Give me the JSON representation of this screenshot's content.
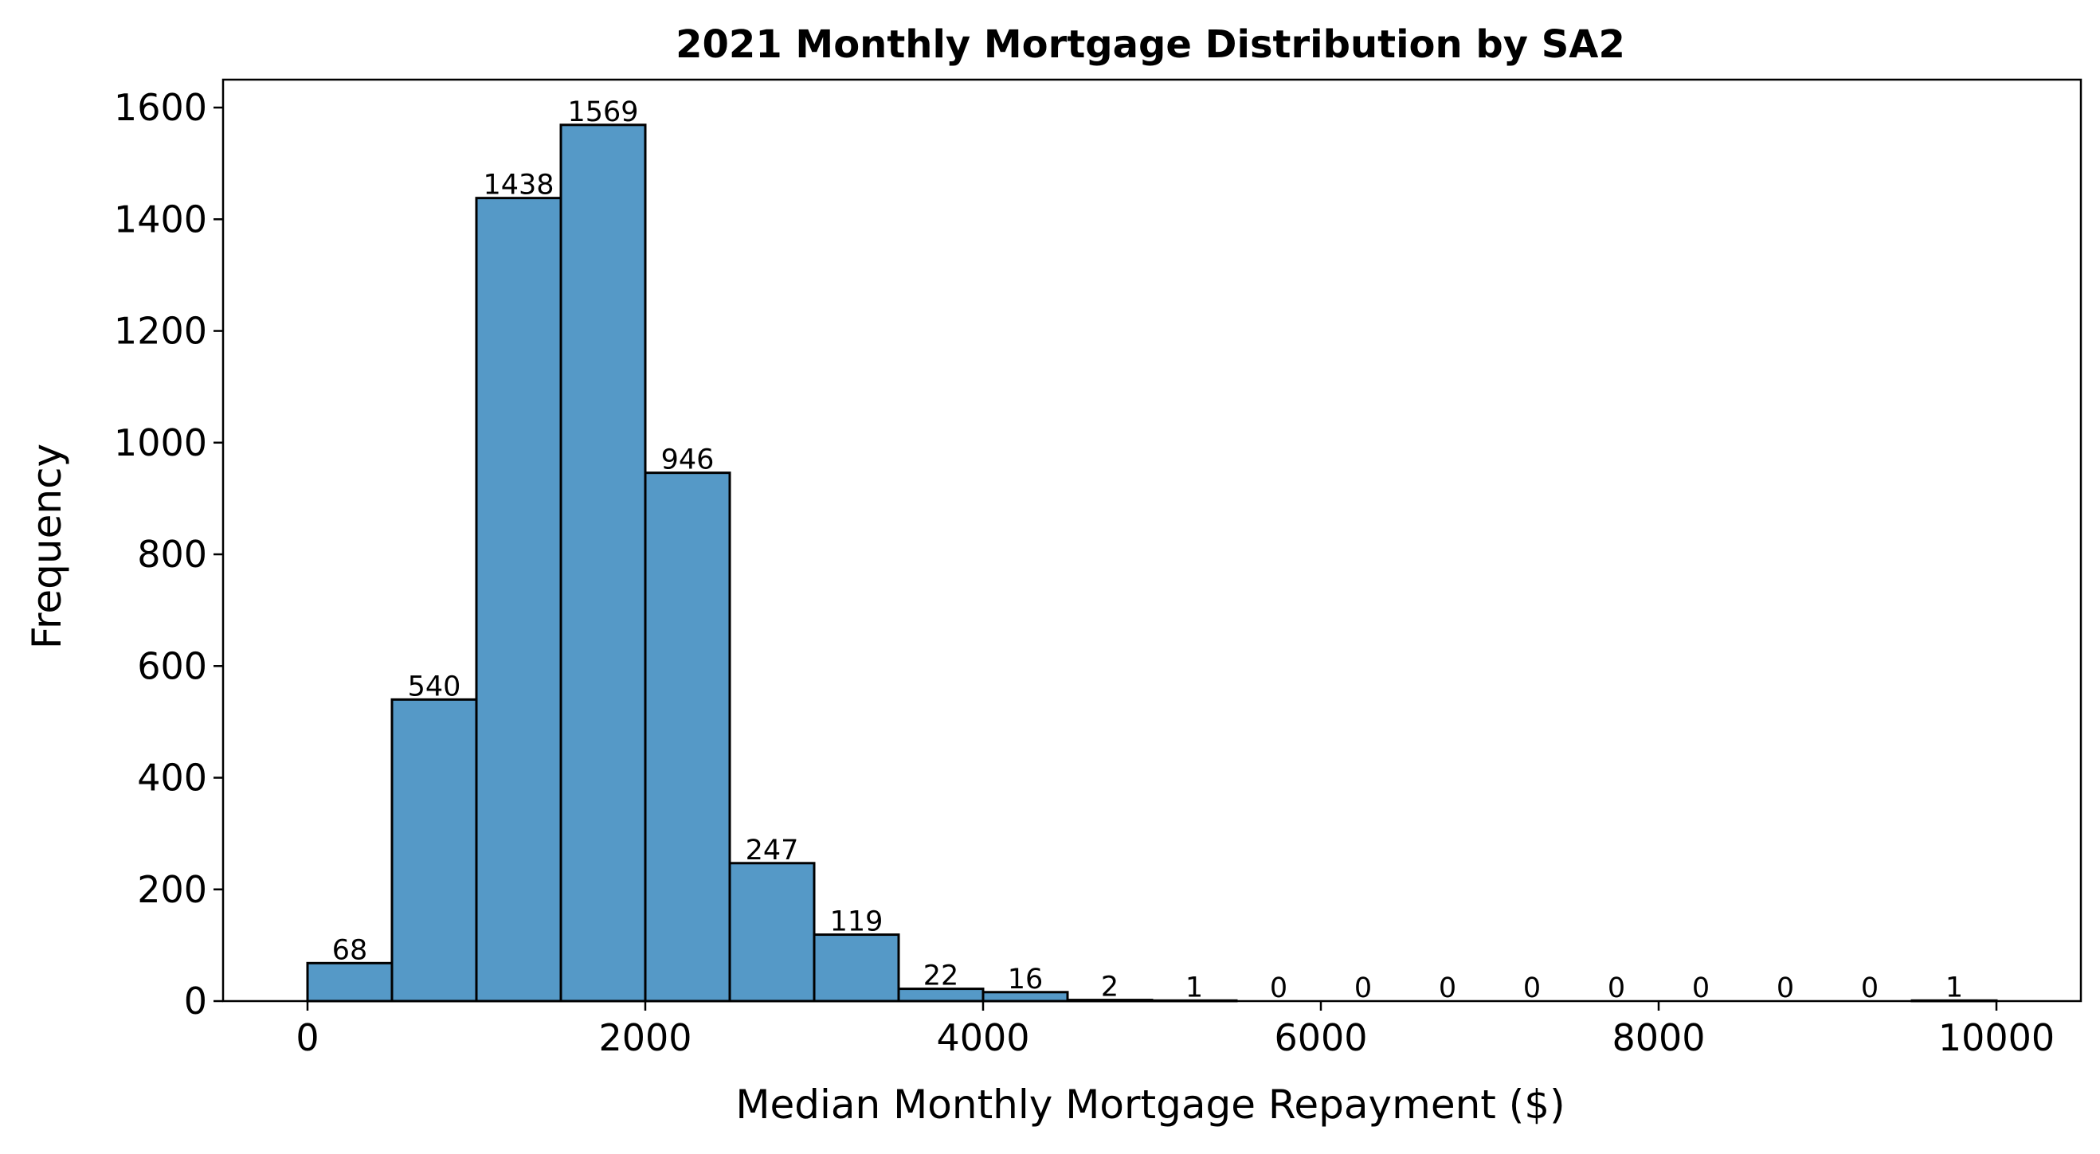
{
  "chart_data": {
    "type": "bar",
    "title": "2021 Monthly Mortgage Distribution by SA2",
    "xlabel": "Median Monthly Mortgage Repayment ($)",
    "ylabel": "Frequency",
    "bin_edges": [
      0,
      500,
      1000,
      1500,
      2000,
      2500,
      3000,
      3500,
      4000,
      4500,
      5000,
      5500,
      6000,
      6500,
      7000,
      7500,
      8000,
      8500,
      9000,
      9500,
      10000
    ],
    "values": [
      68,
      540,
      1438,
      1569,
      946,
      247,
      119,
      22,
      16,
      2,
      1,
      0,
      0,
      0,
      0,
      0,
      0,
      0,
      0,
      1
    ],
    "value_labels": [
      "68",
      "540",
      "1438",
      "1569",
      "946",
      "247",
      "119",
      "22",
      "16",
      "2",
      "1",
      "0",
      "0",
      "0",
      "0",
      "0",
      "0",
      "0",
      "0",
      "1"
    ],
    "xlim": [
      -500,
      10500
    ],
    "ylim": [
      0,
      1650
    ],
    "xticks": [
      0,
      2000,
      4000,
      6000,
      8000,
      10000
    ],
    "xtick_labels": [
      "0",
      "2000",
      "4000",
      "6000",
      "8000",
      "10000"
    ],
    "yticks": [
      0,
      200,
      400,
      600,
      800,
      1000,
      1200,
      1400,
      1600
    ],
    "ytick_labels": [
      "0",
      "200",
      "400",
      "600",
      "800",
      "1000",
      "1200",
      "1400",
      "1600"
    ],
    "grid": false,
    "colors": {
      "bar_fill": "#5599c7",
      "bar_edge": "#000000"
    }
  }
}
